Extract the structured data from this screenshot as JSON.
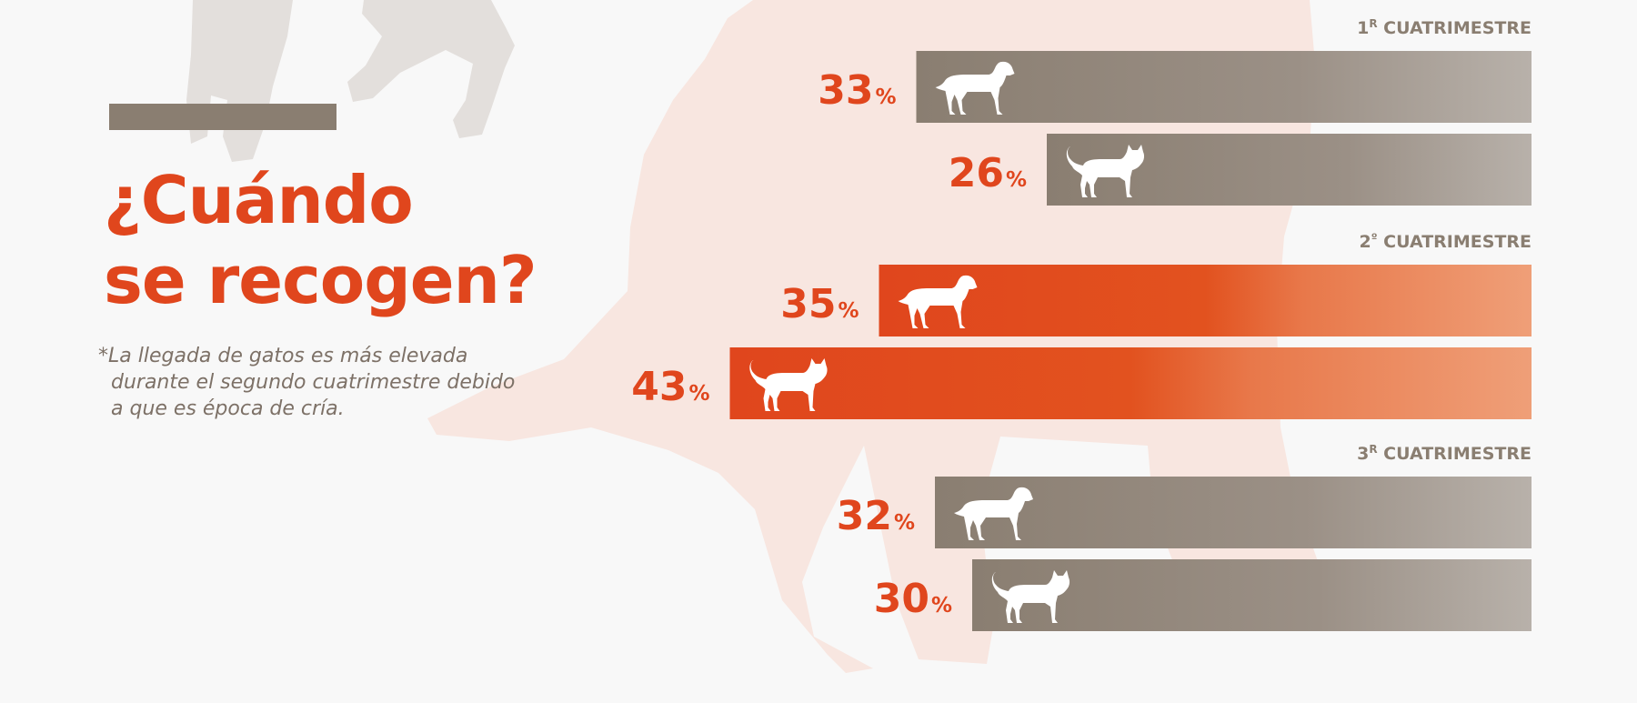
{
  "title": {
    "line1": "¿Cuándo",
    "line2": "se recogen?"
  },
  "note": {
    "line1": "*La llegada de gatos es más elevada",
    "line2": "durante el segundo cuatrimestre debido",
    "line3": "a que es época de cría."
  },
  "colors": {
    "accent": "#e0461d",
    "grey_bar": "#8a7e71",
    "background": "#f8f8f8",
    "silhouette_pink": "#f8e6e0",
    "silhouette_grey": "#e3dfdc"
  },
  "chart_data": {
    "type": "bar",
    "orientation": "horizontal",
    "xlim": [
      0,
      100
    ],
    "value_suffix": "%",
    "groups": [
      {
        "label": "1R CUATRIMESTRE",
        "label_main": "1",
        "label_sup": "R",
        "label_rest": " CUATRIMESTRE",
        "highlight": false,
        "bars": [
          {
            "icon": "dog-icon",
            "value": 33
          },
          {
            "icon": "cat-icon",
            "value": 26
          }
        ]
      },
      {
        "label": "2º CUATRIMESTRE",
        "label_main": "2",
        "label_sup": "º",
        "label_rest": " CUATRIMESTRE",
        "highlight": true,
        "bars": [
          {
            "icon": "dog-icon",
            "value": 35
          },
          {
            "icon": "cat-icon",
            "value": 43
          }
        ]
      },
      {
        "label": "3R CUATRIMESTRE",
        "label_main": "3",
        "label_sup": "R",
        "label_rest": " CUATRIMESTRE",
        "highlight": false,
        "bars": [
          {
            "icon": "dog-icon",
            "value": 32
          },
          {
            "icon": "cat-icon",
            "value": 30
          }
        ]
      }
    ]
  }
}
